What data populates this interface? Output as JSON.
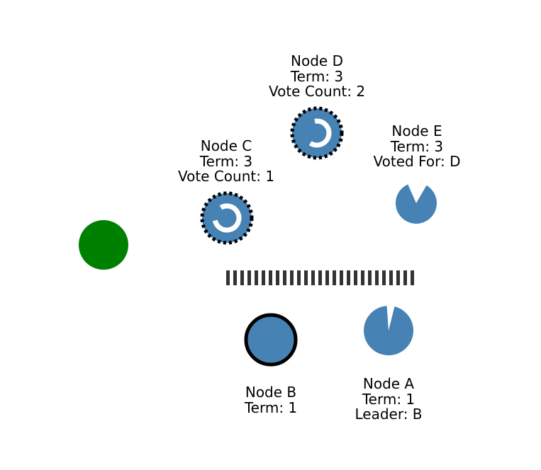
{
  "colors": {
    "node": "#4682b4",
    "client": "#008000",
    "partition": "#333333",
    "outline": "#000000",
    "timer": "#ffffff"
  },
  "nodes": {
    "a": {
      "name": "Node A",
      "term": "Term: 1",
      "role": "Leader: B",
      "state": "follower",
      "timeout_remaining": 0.95
    },
    "b": {
      "name": "Node B",
      "term": "Term: 1",
      "role": "",
      "state": "leader"
    },
    "c": {
      "name": "Node C",
      "term": "Term: 3",
      "role": "Vote Count: 1",
      "state": "candidate",
      "timeout_remaining": 0.8
    },
    "d": {
      "name": "Node D",
      "term": "Term: 3",
      "role": "Vote Count: 2",
      "state": "candidate",
      "timeout_remaining": 0.62
    },
    "e": {
      "name": "Node E",
      "term": "Term: 3",
      "role": "Voted For: D",
      "state": "follower",
      "timeout_remaining": 0.85
    }
  },
  "client": {
    "icon": "client-circle"
  },
  "partition": {
    "icon": "network-partition-dashes"
  }
}
